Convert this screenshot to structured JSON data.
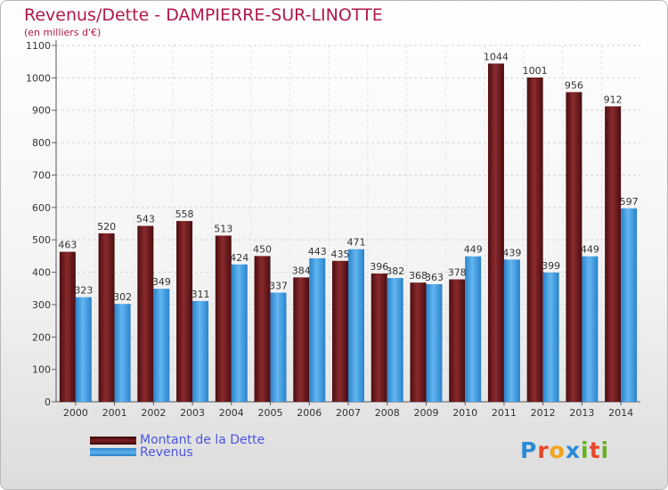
{
  "title": "Revenus/Dette - DAMPIERRE-SUR-LINOTTE",
  "subtitle": "(en milliers d'€)",
  "logo": {
    "letters": [
      "P",
      "r",
      "o",
      "x",
      "i",
      "t",
      "i"
    ],
    "colors": [
      "#2a8ad6",
      "#e8462a",
      "#f2a21c",
      "#2a8ad6",
      "#6ab023",
      "#e8462a",
      "#6ab023"
    ]
  },
  "colors": {
    "dette": "#7a1e22",
    "revenus": "#4aa6ec",
    "title": "#b0184a",
    "legend_text": "#4a55e0"
  },
  "chart_data": {
    "type": "bar",
    "title": "Revenus/Dette - DAMPIERRE-SUR-LINOTTE",
    "subtitle": "(en milliers d'€)",
    "categories": [
      "2000",
      "2001",
      "2002",
      "2003",
      "2004",
      "2005",
      "2006",
      "2007",
      "2008",
      "2009",
      "2010",
      "2011",
      "2012",
      "2013",
      "2014"
    ],
    "series": [
      {
        "name": "Montant de la Dette",
        "values": [
          463,
          520,
          543,
          558,
          513,
          450,
          384,
          435,
          396,
          368,
          378,
          1044,
          1001,
          956,
          912
        ]
      },
      {
        "name": "Revenus",
        "values": [
          323,
          302,
          349,
          311,
          424,
          337,
          443,
          471,
          382,
          363,
          449,
          439,
          399,
          449,
          597
        ]
      }
    ],
    "yticks": [
      0,
      100,
      200,
      300,
      400,
      500,
      600,
      700,
      800,
      900,
      1000,
      1100
    ],
    "ylim": [
      0,
      1100
    ],
    "grid": true,
    "legend": "bottom-left"
  }
}
